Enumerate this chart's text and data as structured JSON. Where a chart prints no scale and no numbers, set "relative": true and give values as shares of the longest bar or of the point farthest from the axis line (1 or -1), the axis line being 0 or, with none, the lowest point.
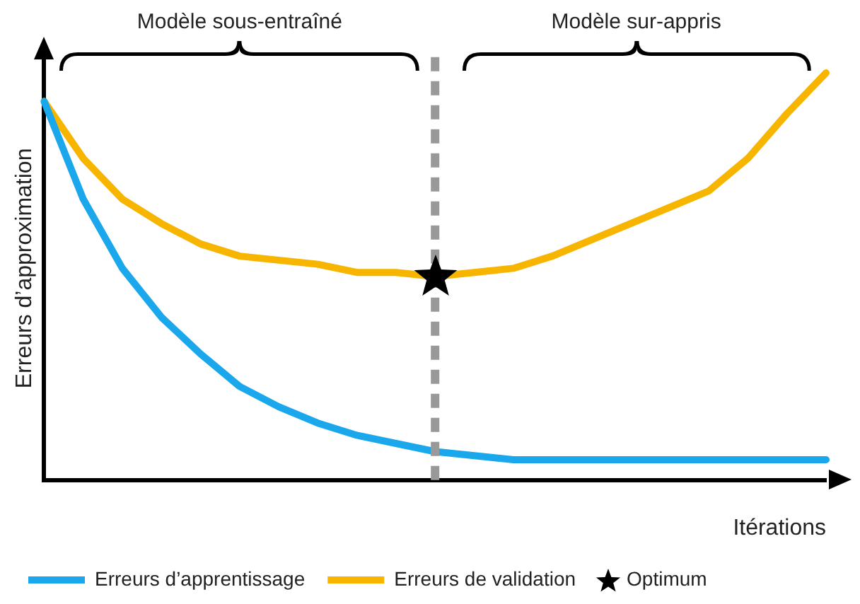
{
  "chart_data": {
    "type": "line",
    "relative": true,
    "xlabel": "Itérations",
    "ylabel": "Erreurs d’approximation",
    "legend": "bottom",
    "grid": false,
    "categories": [
      null,
      null,
      null,
      null,
      null,
      null,
      null,
      null,
      null,
      null,
      null,
      null,
      null,
      null,
      null,
      null,
      null,
      null,
      null,
      null,
      null
    ],
    "series": [
      {
        "name": "Erreurs d’apprentissage",
        "color": "#1aa7ec",
        "values": [
          0.93,
          0.69,
          0.52,
          0.4,
          0.31,
          0.23,
          0.18,
          0.14,
          0.11,
          0.09,
          0.07,
          0.06,
          0.05,
          0.05,
          0.05,
          0.05,
          0.05,
          0.05,
          0.05,
          0.05,
          0.05
        ]
      },
      {
        "name": "Erreurs de validation",
        "color": "#f7b500",
        "values": [
          0.93,
          0.79,
          0.69,
          0.63,
          0.58,
          0.55,
          0.54,
          0.53,
          0.51,
          0.51,
          0.5,
          0.51,
          0.52,
          0.55,
          0.59,
          0.63,
          0.67,
          0.71,
          0.79,
          0.9,
          1.0
        ]
      }
    ],
    "marker": "none",
    "ref_lines": [
      {
        "axis": "x",
        "color": "#999999",
        "line_style": "dashed"
      }
    ],
    "annotations": [
      "Modèle sous-entraîné",
      "Modèle sur-appris",
      "Optimum"
    ]
  }
}
